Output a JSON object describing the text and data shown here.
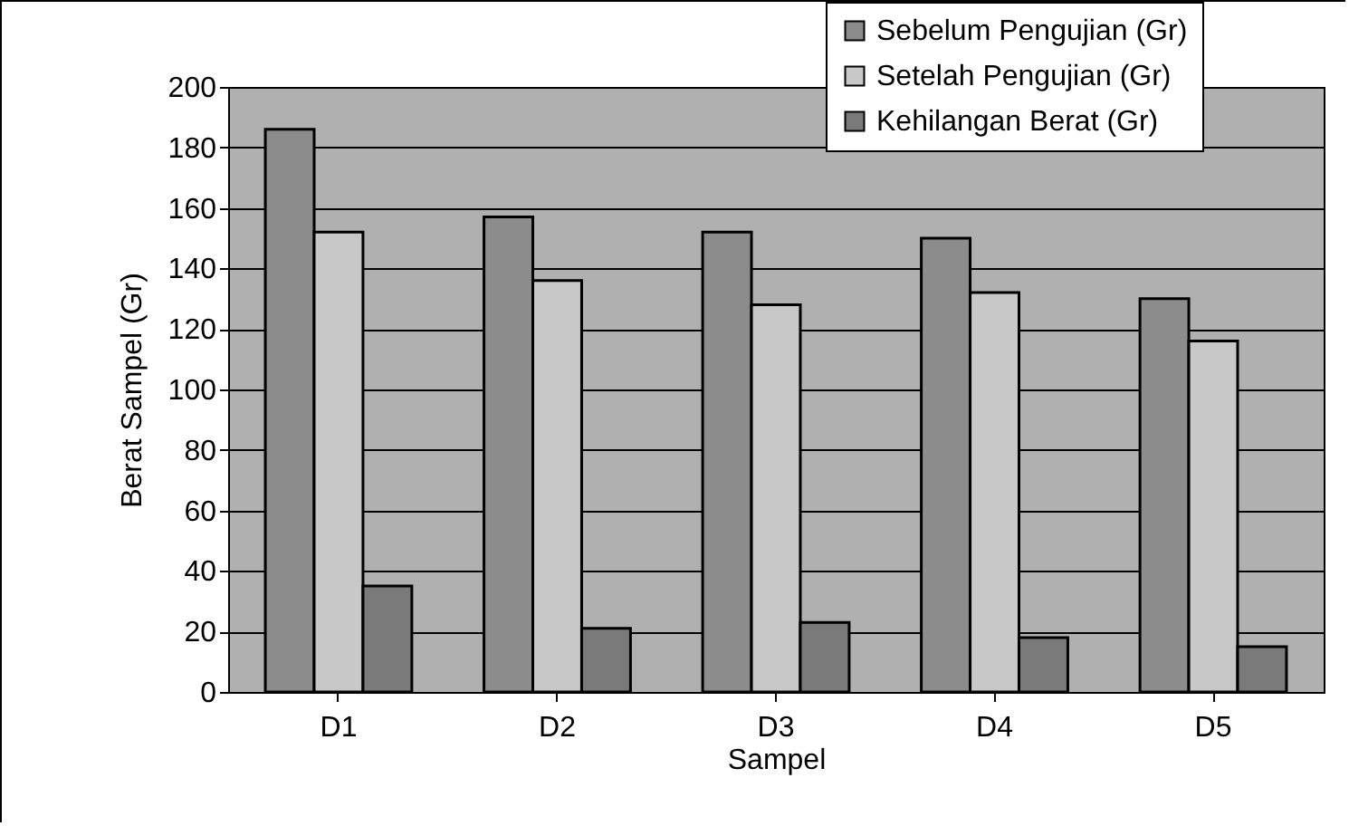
{
  "chart_data": {
    "type": "bar",
    "xlabel": "Sampel",
    "ylabel": "Berat Sampel (Gr)",
    "categories": [
      "D1",
      "D2",
      "D3",
      "D4",
      "D5"
    ],
    "series": [
      {
        "name": "Sebelum Pengujian (Gr)",
        "color": "#8c8c8c",
        "values": [
          186,
          157,
          152,
          150,
          130
        ]
      },
      {
        "name": "Setelah Pengujian (Gr)",
        "color": "#c8c8c8",
        "values": [
          152,
          136,
          128,
          132,
          116
        ]
      },
      {
        "name": "Kehilangan Berat (Gr)",
        "color": "#7a7a7a",
        "values": [
          35,
          21,
          23,
          18,
          15
        ]
      }
    ],
    "ylim": [
      0,
      200
    ],
    "yticks": [
      0,
      20,
      40,
      60,
      80,
      100,
      120,
      140,
      160,
      180,
      200
    ],
    "grid": "y",
    "legend": "top right"
  }
}
